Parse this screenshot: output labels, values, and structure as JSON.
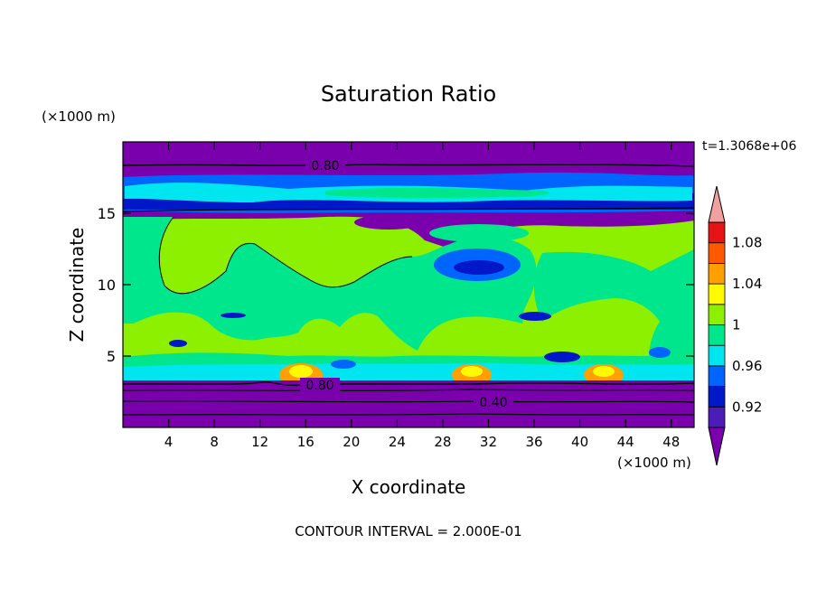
{
  "chart_data": {
    "type": "heatmap",
    "title": "Saturation Ratio",
    "xlabel": "X coordinate",
    "ylabel": "Z coordinate",
    "x_unit": "(×1000 m)",
    "y_unit": "(×1000 m)",
    "time_label": "t=1.3068e+06",
    "footer": "CONTOUR INTERVAL = 2.000E-01",
    "xlim": [
      0,
      50
    ],
    "ylim": [
      0,
      20
    ],
    "x_ticks": [
      4,
      8,
      12,
      16,
      20,
      24,
      28,
      32,
      36,
      40,
      44,
      48
    ],
    "y_ticks": [
      5,
      10,
      15
    ],
    "colorbar": {
      "levels": [
        0.9,
        0.92,
        0.94,
        0.96,
        0.98,
        1.0,
        1.02,
        1.04,
        1.06,
        1.08,
        1.1
      ],
      "colors": [
        "#7a00ae",
        "#4b1cb8",
        "#0018c8",
        "#0064ff",
        "#00e6f0",
        "#00e68c",
        "#8cf000",
        "#fffa00",
        "#ffa000",
        "#ff5a00",
        "#e61414",
        "#f0a0a0"
      ],
      "labels": [
        "0.92",
        "0.96",
        "1",
        "1.04",
        "1.08"
      ]
    },
    "contour_labels": [
      "0.80",
      "0.80",
      "0.40"
    ]
  }
}
